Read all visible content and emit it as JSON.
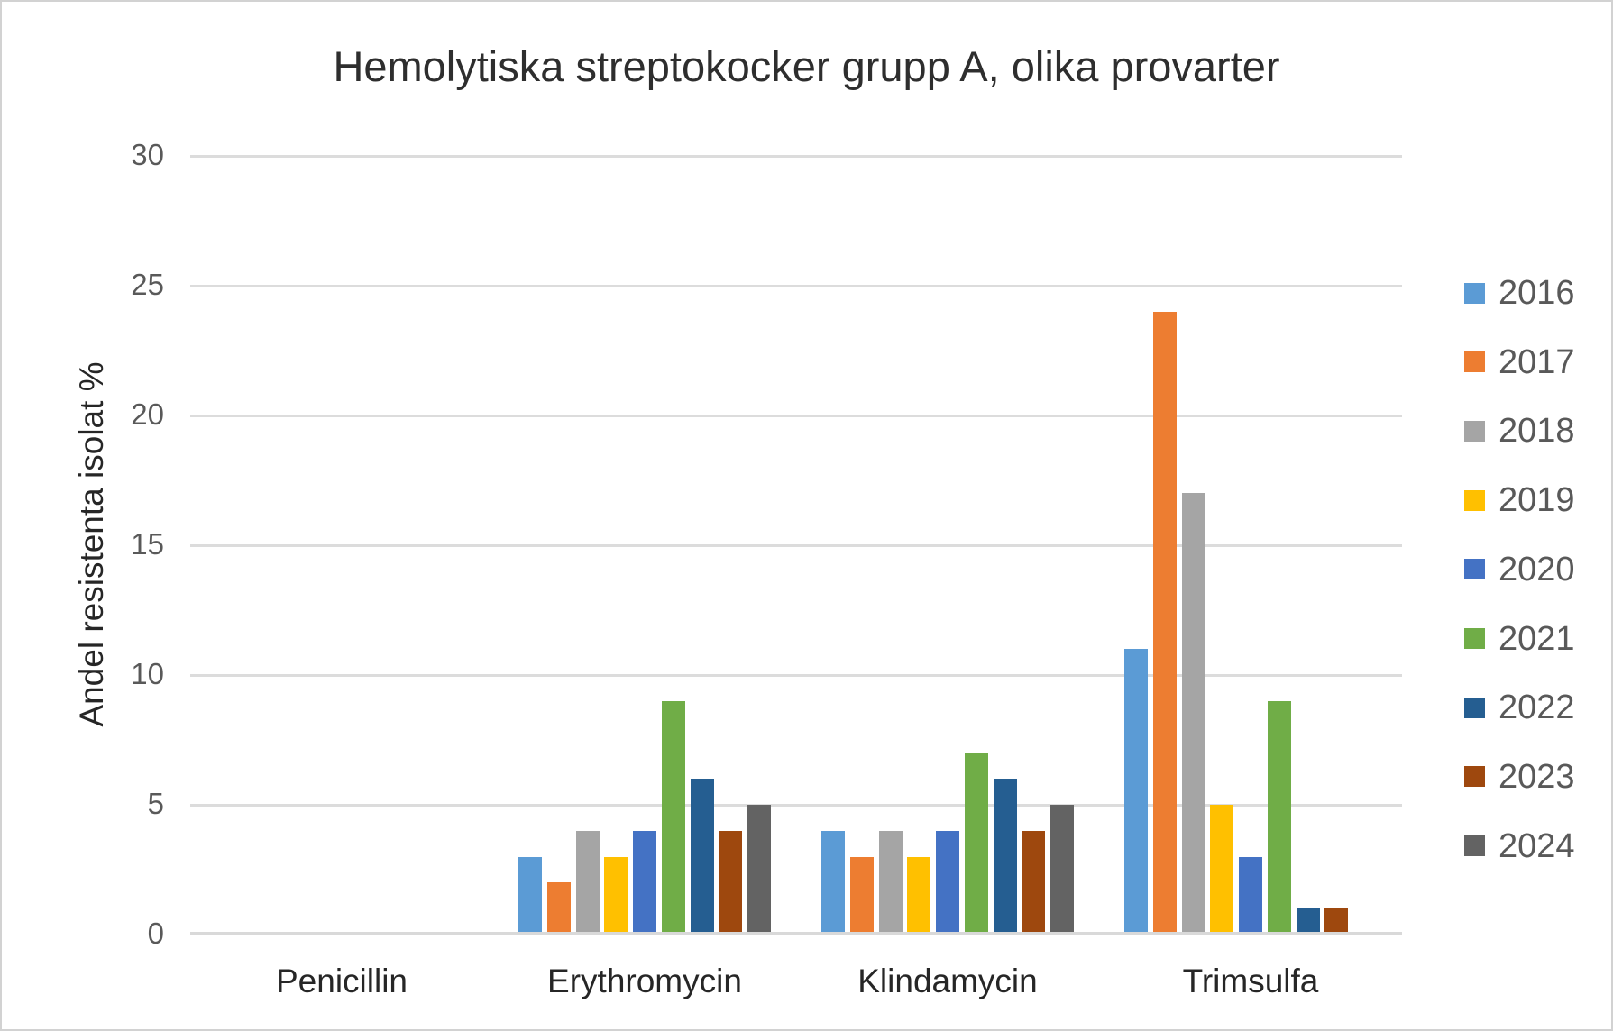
{
  "window": {
    "background_color": "#ffffff",
    "border_color": "#d2d2d2"
  },
  "chart_data": {
    "type": "bar",
    "title": "Hemolytiska streptokocker grupp A, olika provarter",
    "xlabel": "",
    "ylabel": "Andel resistenta isolat %",
    "categories": [
      "Penicillin",
      "Erythromycin",
      "Klindamycin",
      "Trimsulfa"
    ],
    "series": [
      {
        "name": "2016",
        "color": "#5B9BD5",
        "values": [
          0,
          3,
          4,
          11
        ]
      },
      {
        "name": "2017",
        "color": "#ED7D31",
        "values": [
          0,
          2,
          3,
          24
        ]
      },
      {
        "name": "2018",
        "color": "#A5A5A5",
        "values": [
          0,
          4,
          4,
          17
        ]
      },
      {
        "name": "2019",
        "color": "#FFC000",
        "values": [
          0,
          3,
          3,
          5
        ]
      },
      {
        "name": "2020",
        "color": "#4472C4",
        "values": [
          0,
          4,
          4,
          3
        ]
      },
      {
        "name": "2021",
        "color": "#70AD47",
        "values": [
          0,
          9,
          7,
          9
        ]
      },
      {
        "name": "2022",
        "color": "#255E91",
        "values": [
          0,
          6,
          6,
          1
        ]
      },
      {
        "name": "2023",
        "color": "#9E480E",
        "values": [
          0,
          4,
          4,
          1
        ]
      },
      {
        "name": "2024",
        "color": "#636363",
        "values": [
          0,
          5,
          5,
          0
        ]
      }
    ],
    "ylim": [
      0,
      30
    ],
    "yticks": [
      0,
      5,
      10,
      15,
      20,
      25,
      30
    ],
    "grid": true,
    "legend_position": "right",
    "gridline_color": "#dcdcdc",
    "axis_line_color": "#d9d9d9",
    "tick_label_color": "#595959",
    "category_label_color": "#262626",
    "title_color": "#2e2e2e",
    "legend_label_color": "#595959"
  }
}
